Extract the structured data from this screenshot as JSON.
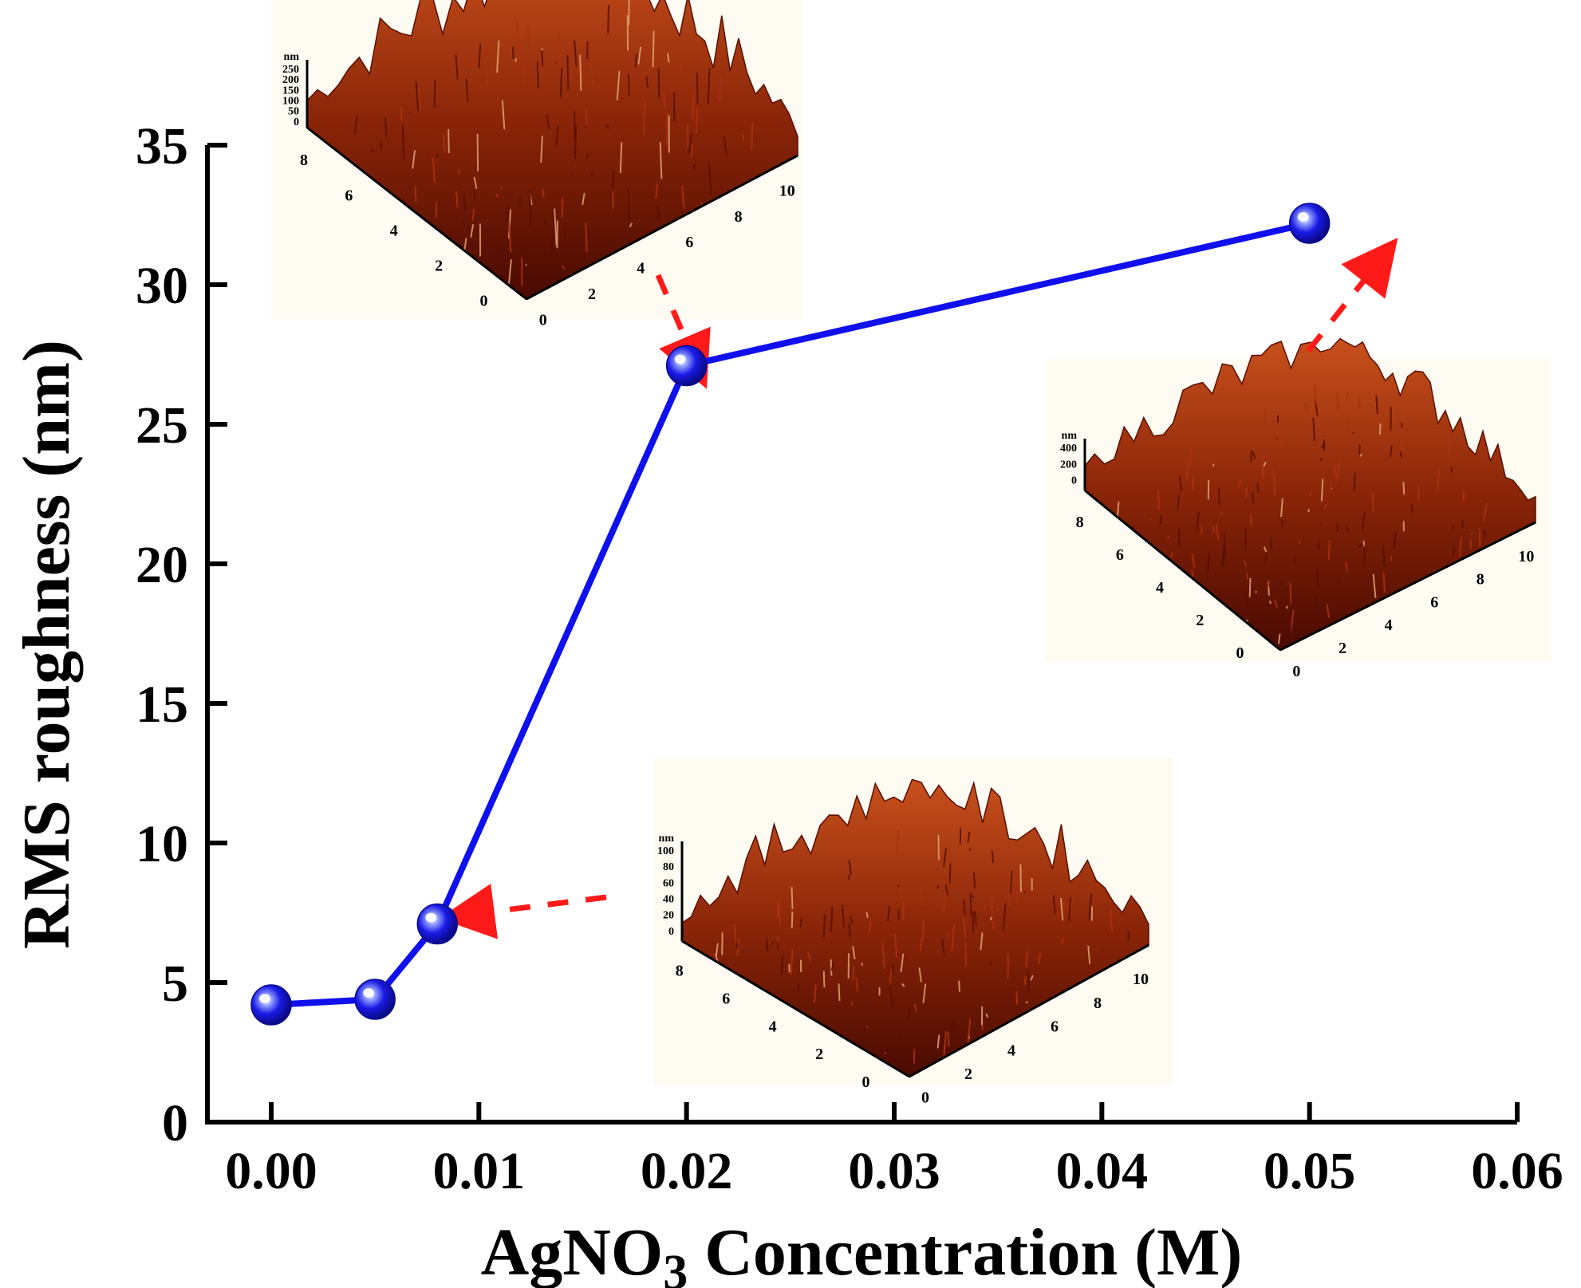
{
  "chart_data": {
    "type": "line",
    "title": "",
    "xlabel": "AgNO3 Concentration (M)",
    "xlabel_parts": {
      "pre": "AgNO",
      "sub": "3",
      "post": " Concentration (M)"
    },
    "ylabel": "RMS roughness (nm)",
    "xlim": [
      -0.003,
      0.06
    ],
    "ylim": [
      0,
      35
    ],
    "xticks": [
      0.0,
      0.01,
      0.02,
      0.03,
      0.04,
      0.05,
      0.06
    ],
    "xtick_labels": [
      "0.00",
      "0.01",
      "0.02",
      "0.03",
      "0.04",
      "0.05",
      "0.06"
    ],
    "yticks": [
      0,
      5,
      10,
      15,
      20,
      25,
      30,
      35
    ],
    "ytick_labels": [
      "0",
      "5",
      "10",
      "15",
      "20",
      "25",
      "30",
      "35"
    ],
    "grid": false,
    "series": [
      {
        "name": "RMS roughness",
        "color": "#1010ee",
        "x": [
          0.0,
          0.005,
          0.008,
          0.02,
          0.05
        ],
        "y": [
          4.2,
          4.4,
          7.1,
          27.1,
          32.2
        ]
      }
    ],
    "insets": [
      {
        "name": "afm-inset-0.02M",
        "points_to_x": 0.02,
        "z_unit": "nm",
        "z_ticks": [
          "250",
          "200",
          "150",
          "100",
          "50",
          "0"
        ],
        "y_ticks": [
          "8",
          "6",
          "4",
          "2",
          "0"
        ],
        "x_ticks": [
          "0",
          "2",
          "4",
          "6",
          "8",
          "10"
        ]
      },
      {
        "name": "afm-inset-0.05M",
        "points_to_x": 0.05,
        "z_unit": "nm",
        "z_ticks": [
          "400",
          "200",
          "0"
        ],
        "y_ticks": [
          "8",
          "6",
          "4",
          "2",
          "0"
        ],
        "x_ticks": [
          "0",
          "2",
          "4",
          "6",
          "8",
          "10"
        ]
      },
      {
        "name": "afm-inset-0.008M",
        "points_to_x": 0.008,
        "z_unit": "nm",
        "z_ticks": [
          "100",
          "80",
          "60",
          "40",
          "20",
          "0"
        ],
        "y_ticks": [
          "8",
          "6",
          "4",
          "2",
          "0"
        ],
        "x_ticks": [
          "0",
          "2",
          "4",
          "6",
          "8",
          "10"
        ]
      }
    ]
  },
  "colors": {
    "line": "#1010ee",
    "marker": "#1a1ae6",
    "arrow": "#ff1a1a",
    "afm_dark": "#5a0f02",
    "afm_mid": "#a83210",
    "afm_light": "#e0a070",
    "inset_bg": "#fdfbf2"
  }
}
